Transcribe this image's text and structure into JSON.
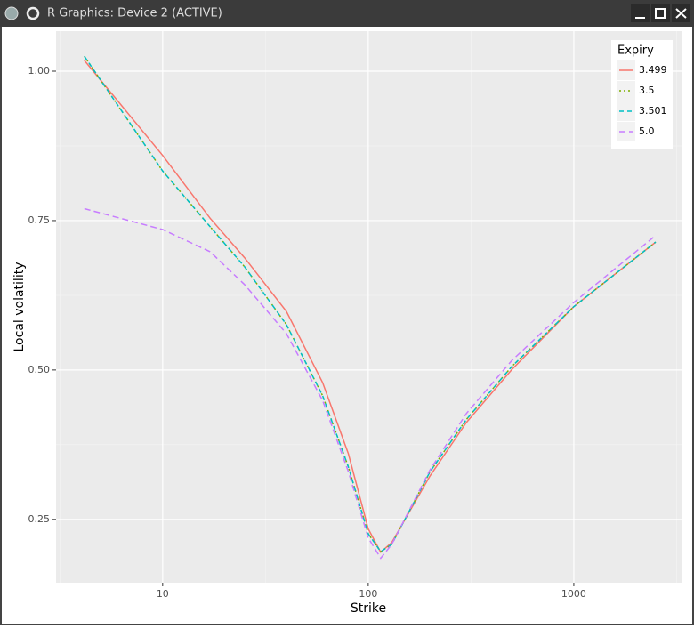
{
  "window": {
    "title": "R Graphics: Device 2 (ACTIVE)"
  },
  "chart_data": {
    "type": "line",
    "x_label": "Strike",
    "y_label": "Local volatility",
    "x_scale": "log",
    "xlim": [
      3.03,
      3342
    ],
    "xticks": [
      10,
      100,
      1000
    ],
    "ylim": [
      0.144,
      1.067
    ],
    "yticks": [
      {
        "value": 0.25,
        "label": "0.25"
      },
      {
        "value": 0.5,
        "label": "0.50"
      },
      {
        "value": 0.75,
        "label": "0.75"
      },
      {
        "value": 1.0,
        "label": "1.00"
      }
    ],
    "grid": true,
    "legend_title": "Expiry",
    "legend_position": "top-right",
    "x": [
      4.16,
      10,
      17,
      25,
      40,
      60,
      80,
      100,
      115,
      130,
      200,
      300,
      500,
      1000,
      2500
    ],
    "series": [
      {
        "name": "3.499",
        "color": "#F8766D",
        "dash": "solid",
        "values": [
          1.018,
          0.859,
          0.754,
          0.688,
          0.598,
          0.479,
          0.36,
          0.234,
          0.195,
          0.211,
          0.323,
          0.412,
          0.501,
          0.606,
          0.714
        ]
      },
      {
        "name": "3.5",
        "color": "#7CAE00",
        "dash": "dotted",
        "values": [
          1.025,
          0.833,
          0.74,
          0.673,
          0.576,
          0.457,
          0.338,
          0.226,
          0.196,
          0.208,
          0.33,
          0.417,
          0.506,
          0.606,
          0.714
        ]
      },
      {
        "name": "3.501",
        "color": "#00BFC4",
        "dash": "dashed",
        "values": [
          1.025,
          0.833,
          0.74,
          0.673,
          0.576,
          0.457,
          0.338,
          0.226,
          0.196,
          0.208,
          0.33,
          0.417,
          0.506,
          0.606,
          0.714
        ]
      },
      {
        "name": "5.0",
        "color": "#C77CFF",
        "dash": "longdash",
        "values": [
          0.77,
          0.735,
          0.698,
          0.643,
          0.561,
          0.449,
          0.33,
          0.219,
          0.185,
          0.208,
          0.333,
          0.427,
          0.516,
          0.613,
          0.725
        ]
      }
    ]
  }
}
